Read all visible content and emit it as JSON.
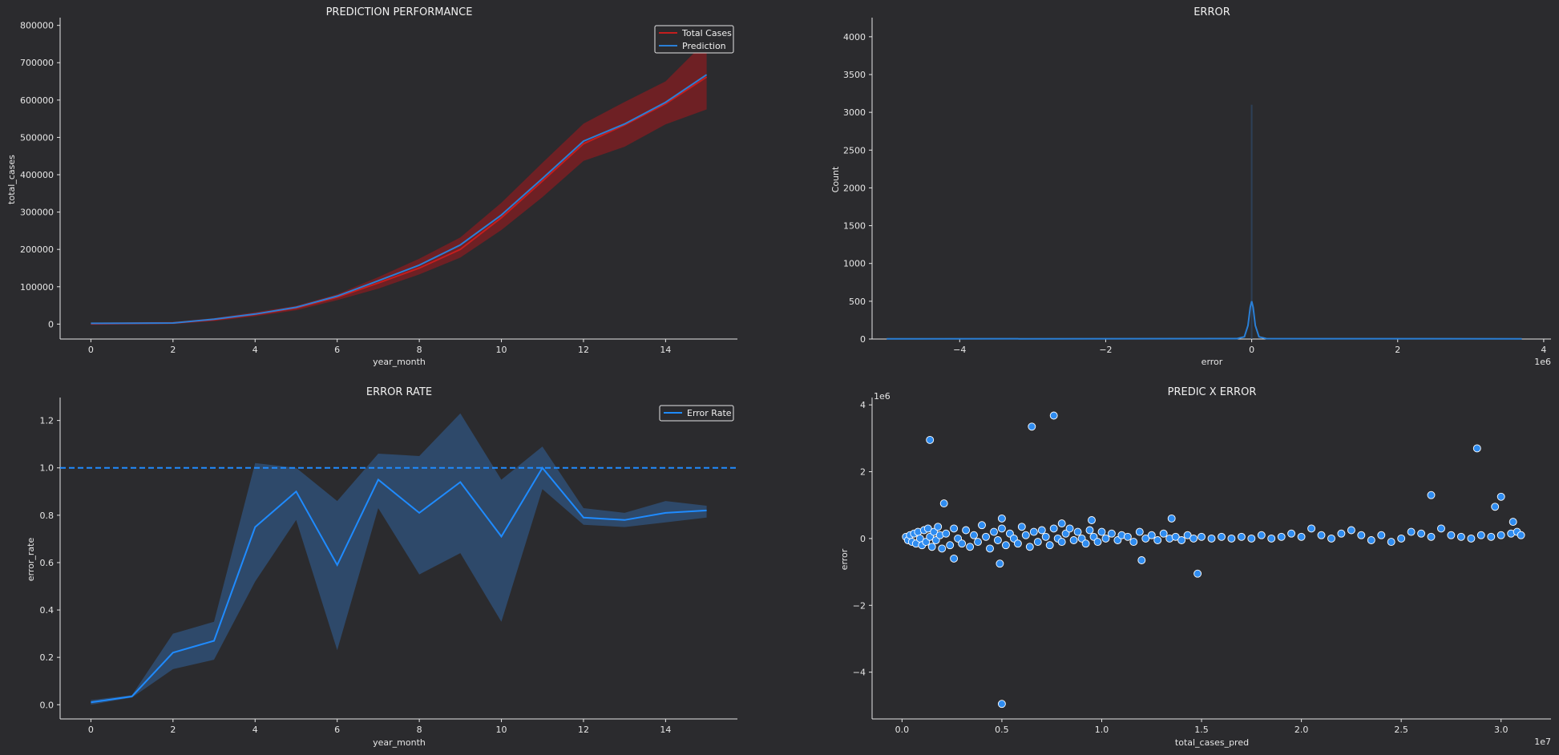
{
  "colors": {
    "background": "#2b2b2e",
    "text": "#e6e6e6",
    "total_cases": "#c41e1e",
    "prediction": "#2a7fd6",
    "error_rate": "#1f8bff",
    "band_red": "#7a1f22",
    "band_blue": "#2f4f74",
    "scatter": "#2f8cf0"
  },
  "chart_data": [
    {
      "type": "line",
      "title": "PREDICTION PERFORMANCE",
      "xlabel": "year_month",
      "ylabel": "total_cases",
      "xlim": [
        -0.75,
        15.75
      ],
      "ylim": [
        -40000,
        810000
      ],
      "xticks": [
        "0",
        "2",
        "4",
        "6",
        "8",
        "10",
        "12",
        "14"
      ],
      "yticks": [
        "0",
        "100000",
        "200000",
        "300000",
        "400000",
        "500000",
        "600000",
        "700000",
        "800000"
      ],
      "legend": "top-right",
      "x": [
        0,
        1,
        2,
        3,
        4,
        5,
        6,
        7,
        8,
        9,
        10,
        11,
        12,
        13,
        14,
        15
      ],
      "series": [
        {
          "name": "Total Cases",
          "values": [
            1000,
            2000,
            3000,
            12000,
            26000,
            43000,
            72000,
            110000,
            150000,
            200000,
            285000,
            383000,
            483000,
            533000,
            590000,
            662000
          ],
          "band_low": [
            -2000,
            -1000,
            0,
            8000,
            21000,
            37000,
            64000,
            95000,
            133000,
            178000,
            252000,
            340000,
            437000,
            475000,
            535000,
            575000
          ],
          "band_high": [
            4000,
            5000,
            6000,
            16000,
            32000,
            49000,
            80000,
            126000,
            175000,
            232000,
            325000,
            432000,
            537000,
            595000,
            650000,
            760000
          ]
        },
        {
          "name": "Prediction",
          "values": [
            2000,
            2500,
            3000,
            13000,
            27000,
            45000,
            75000,
            116000,
            158000,
            212000,
            292000,
            390000,
            490000,
            536000,
            594000,
            668000
          ]
        }
      ]
    },
    {
      "type": "area",
      "title": "ERROR",
      "xlabel": "error",
      "ylabel": "Count",
      "offset": "1e6",
      "xlim": [
        -5.2,
        4.1
      ],
      "ylim": [
        0,
        4200
      ],
      "xticks": [
        "−4",
        "−2",
        "0",
        "2",
        "4"
      ],
      "yticks": [
        "0",
        "500",
        "1000",
        "1500",
        "2000",
        "2500",
        "3000",
        "3500",
        "4000"
      ],
      "x": [
        -5.0,
        -0.2,
        -0.1,
        -0.05,
        -0.02,
        0,
        0.02,
        0.05,
        0.1,
        0.2,
        3.7
      ],
      "values": [
        2,
        5,
        30,
        180,
        420,
        500,
        420,
        180,
        30,
        5,
        2
      ],
      "hist_bar": {
        "x": 0,
        "count": 3100
      }
    },
    {
      "type": "line",
      "title": "ERROR RATE",
      "xlabel": "year_month",
      "ylabel": "error_rate",
      "xlim": [
        -0.75,
        15.75
      ],
      "ylim": [
        -0.06,
        1.28
      ],
      "xticks": [
        "0",
        "2",
        "4",
        "6",
        "8",
        "10",
        "12",
        "14"
      ],
      "yticks": [
        "0.0",
        "0.2",
        "0.4",
        "0.6",
        "0.8",
        "1.0",
        "1.2"
      ],
      "reference_line": 1.0,
      "legend": "top-right",
      "x": [
        0,
        1,
        2,
        3,
        4,
        5,
        6,
        7,
        8,
        9,
        10,
        11,
        12,
        13,
        14,
        15
      ],
      "series": [
        {
          "name": "Error Rate",
          "values": [
            0.01,
            0.035,
            0.22,
            0.27,
            0.75,
            0.9,
            0.59,
            0.95,
            0.81,
            0.94,
            0.71,
            1.0,
            0.79,
            0.78,
            0.81,
            0.82
          ],
          "band_low": [
            0.0,
            0.03,
            0.15,
            0.19,
            0.52,
            0.78,
            0.23,
            0.83,
            0.55,
            0.64,
            0.35,
            0.91,
            0.76,
            0.75,
            0.77,
            0.79
          ],
          "band_high": [
            0.02,
            0.04,
            0.3,
            0.35,
            1.02,
            1.0,
            0.86,
            1.06,
            1.05,
            1.23,
            0.95,
            1.09,
            0.83,
            0.81,
            0.86,
            0.84
          ]
        }
      ]
    },
    {
      "type": "scatter",
      "title": "PREDIC X ERROR",
      "xlabel": "total_cases_pred",
      "ylabel": "error",
      "x_offset": "1e7",
      "y_offset": "1e6",
      "xlim": [
        -0.15,
        3.25
      ],
      "ylim": [
        -5.4,
        4.1
      ],
      "xticks": [
        "0.0",
        "0.5",
        "1.0",
        "1.5",
        "2.0",
        "2.5",
        "3.0"
      ],
      "yticks": [
        "−4",
        "−2",
        "0",
        "2",
        "4"
      ],
      "points": [
        [
          0.02,
          0.05
        ],
        [
          0.03,
          -0.05
        ],
        [
          0.04,
          0.1
        ],
        [
          0.05,
          -0.1
        ],
        [
          0.06,
          0.15
        ],
        [
          0.07,
          -0.15
        ],
        [
          0.08,
          0.2
        ],
        [
          0.09,
          0.0
        ],
        [
          0.1,
          -0.2
        ],
        [
          0.11,
          0.25
        ],
        [
          0.12,
          -0.1
        ],
        [
          0.13,
          0.3
        ],
        [
          0.14,
          0.05
        ],
        [
          0.15,
          -0.25
        ],
        [
          0.16,
          0.2
        ],
        [
          0.17,
          -0.05
        ],
        [
          0.18,
          0.35
        ],
        [
          0.19,
          0.1
        ],
        [
          0.2,
          -0.3
        ],
        [
          0.22,
          0.15
        ],
        [
          0.24,
          -0.2
        ],
        [
          0.26,
          0.3
        ],
        [
          0.28,
          0.0
        ],
        [
          0.3,
          -0.15
        ],
        [
          0.32,
          0.25
        ],
        [
          0.34,
          -0.25
        ],
        [
          0.36,
          0.1
        ],
        [
          0.38,
          -0.1
        ],
        [
          0.4,
          0.4
        ],
        [
          0.42,
          0.05
        ],
        [
          0.44,
          -0.3
        ],
        [
          0.46,
          0.2
        ],
        [
          0.48,
          -0.05
        ],
        [
          0.5,
          0.3
        ],
        [
          0.52,
          -0.2
        ],
        [
          0.54,
          0.15
        ],
        [
          0.56,
          0.0
        ],
        [
          0.58,
          -0.15
        ],
        [
          0.6,
          0.35
        ],
        [
          0.62,
          0.1
        ],
        [
          0.64,
          -0.25
        ],
        [
          0.66,
          0.2
        ],
        [
          0.68,
          -0.1
        ],
        [
          0.7,
          0.25
        ],
        [
          0.72,
          0.05
        ],
        [
          0.74,
          -0.2
        ],
        [
          0.76,
          0.3
        ],
        [
          0.78,
          0.0
        ],
        [
          0.8,
          -0.1
        ],
        [
          0.82,
          0.15
        ],
        [
          0.84,
          0.3
        ],
        [
          0.86,
          -0.05
        ],
        [
          0.88,
          0.2
        ],
        [
          0.9,
          0.0
        ],
        [
          0.92,
          -0.15
        ],
        [
          0.94,
          0.25
        ],
        [
          0.96,
          0.05
        ],
        [
          0.98,
          -0.1
        ],
        [
          1.0,
          0.2
        ],
        [
          1.02,
          0.0
        ],
        [
          1.05,
          0.15
        ],
        [
          1.08,
          -0.05
        ],
        [
          1.1,
          0.1
        ],
        [
          1.13,
          0.05
        ],
        [
          1.16,
          -0.1
        ],
        [
          1.19,
          0.2
        ],
        [
          1.22,
          0.0
        ],
        [
          1.25,
          0.1
        ],
        [
          1.28,
          -0.05
        ],
        [
          1.31,
          0.15
        ],
        [
          1.34,
          0.0
        ],
        [
          1.37,
          0.05
        ],
        [
          1.4,
          -0.05
        ],
        [
          1.43,
          0.1
        ],
        [
          1.46,
          0.0
        ],
        [
          1.5,
          0.05
        ],
        [
          1.55,
          0.0
        ],
        [
          1.6,
          0.05
        ],
        [
          1.65,
          0.0
        ],
        [
          1.7,
          0.05
        ],
        [
          1.75,
          0.0
        ],
        [
          1.8,
          0.1
        ],
        [
          1.85,
          0.0
        ],
        [
          1.9,
          0.05
        ],
        [
          1.95,
          0.15
        ],
        [
          2.0,
          0.05
        ],
        [
          2.05,
          0.3
        ],
        [
          2.1,
          0.1
        ],
        [
          2.15,
          0.0
        ],
        [
          2.2,
          0.15
        ],
        [
          2.25,
          0.25
        ],
        [
          2.3,
          0.1
        ],
        [
          2.35,
          -0.05
        ],
        [
          2.4,
          0.1
        ],
        [
          2.45,
          -0.1
        ],
        [
          2.5,
          0.0
        ],
        [
          2.55,
          0.2
        ],
        [
          2.6,
          0.15
        ],
        [
          2.65,
          0.05
        ],
        [
          2.7,
          0.3
        ],
        [
          2.75,
          0.1
        ],
        [
          2.8,
          0.05
        ],
        [
          2.85,
          0.0
        ],
        [
          2.9,
          0.1
        ],
        [
          2.95,
          0.05
        ],
        [
          3.0,
          0.1
        ],
        [
          3.05,
          0.15
        ],
        [
          3.08,
          0.2
        ],
        [
          3.1,
          0.1
        ],
        [
          3.06,
          0.5
        ],
        [
          0.14,
          2.95
        ],
        [
          0.65,
          3.35
        ],
        [
          0.76,
          3.68
        ],
        [
          0.21,
          1.05
        ],
        [
          0.5,
          0.6
        ],
        [
          0.26,
          -0.6
        ],
        [
          0.49,
          -0.75
        ],
        [
          1.2,
          -0.65
        ],
        [
          1.48,
          -1.05
        ],
        [
          0.5,
          -4.95
        ],
        [
          2.88,
          2.7
        ],
        [
          3.0,
          1.25
        ],
        [
          2.97,
          0.95
        ],
        [
          2.65,
          1.3
        ],
        [
          0.8,
          0.45
        ],
        [
          1.35,
          0.6
        ],
        [
          0.95,
          0.55
        ]
      ]
    }
  ]
}
